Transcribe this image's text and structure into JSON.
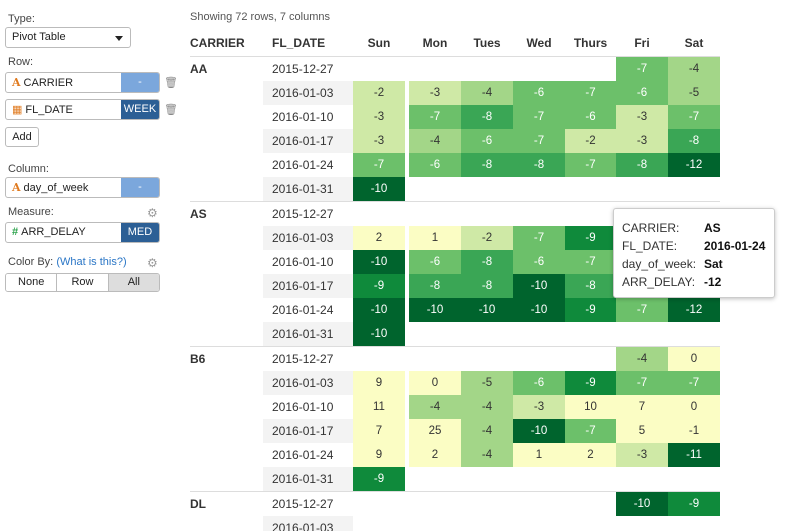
{
  "sidebar": {
    "type_label": "Type:",
    "type_value": "Pivot Table",
    "row_label": "Row:",
    "row_fields": [
      {
        "icon": "text-type-icon",
        "glyph": "A",
        "name": "CARRIER",
        "button": "-"
      },
      {
        "icon": "calendar-icon",
        "glyph": "▦",
        "name": "FL_DATE",
        "button": "WEEK"
      }
    ],
    "add_label": "Add",
    "column_label": "Column:",
    "column_field": {
      "icon": "text-type-icon",
      "glyph": "A",
      "name": "day_of_week",
      "button": "-"
    },
    "measure_label": "Measure:",
    "measure_field": {
      "icon": "number-type-icon",
      "glyph": "#",
      "name": "ARR_DELAY",
      "button": "MED"
    },
    "colorby_label": "Color By:",
    "colorby_link": "(What is this?)",
    "colorby_options": [
      "None",
      "Row",
      "All"
    ],
    "colorby_selected": "All"
  },
  "status": "Showing 72 rows, 7 columns",
  "table": {
    "headers": [
      "CARRIER",
      "FL_DATE",
      "Sun",
      "Mon",
      "Tues",
      "Wed",
      "Thurs",
      "Fri",
      "Sat"
    ],
    "groups": [
      {
        "carrier": "AA",
        "rows": [
          {
            "date": "2015-12-27",
            "values": [
              null,
              null,
              null,
              null,
              null,
              -7,
              -4
            ]
          },
          {
            "date": "2016-01-03",
            "values": [
              -2,
              -3,
              -4,
              -6,
              -7,
              -6,
              -5
            ]
          },
          {
            "date": "2016-01-10",
            "values": [
              -3,
              -7,
              -8,
              -7,
              -6,
              -3,
              -7
            ]
          },
          {
            "date": "2016-01-17",
            "values": [
              -3,
              -4,
              -6,
              -7,
              -2,
              -3,
              -8
            ]
          },
          {
            "date": "2016-01-24",
            "values": [
              -7,
              -6,
              -8,
              -8,
              -7,
              -8,
              -12
            ]
          },
          {
            "date": "2016-01-31",
            "values": [
              -10,
              null,
              null,
              null,
              null,
              null,
              null
            ]
          }
        ]
      },
      {
        "carrier": "AS",
        "rows": [
          {
            "date": "2015-12-27",
            "values": [
              null,
              null,
              null,
              null,
              null,
              null,
              null
            ]
          },
          {
            "date": "2016-01-03",
            "values": [
              2,
              1,
              -2,
              -7,
              -9,
              null,
              null
            ]
          },
          {
            "date": "2016-01-10",
            "values": [
              -10,
              -6,
              -8,
              -6,
              -7,
              null,
              null
            ]
          },
          {
            "date": "2016-01-17",
            "values": [
              -9,
              -8,
              -8,
              -10,
              -8,
              null,
              null
            ]
          },
          {
            "date": "2016-01-24",
            "values": [
              -10,
              -10,
              -10,
              -10,
              -9,
              -7,
              -12
            ]
          },
          {
            "date": "2016-01-31",
            "values": [
              -10,
              null,
              null,
              null,
              null,
              null,
              null
            ]
          }
        ]
      },
      {
        "carrier": "B6",
        "rows": [
          {
            "date": "2015-12-27",
            "values": [
              null,
              null,
              null,
              null,
              null,
              -4,
              0
            ]
          },
          {
            "date": "2016-01-03",
            "values": [
              9,
              0,
              -5,
              -6,
              -9,
              -7,
              -7
            ]
          },
          {
            "date": "2016-01-10",
            "values": [
              11,
              -4,
              -4,
              -3,
              10,
              7,
              0
            ]
          },
          {
            "date": "2016-01-17",
            "values": [
              7,
              25,
              -4,
              -10,
              -7,
              5,
              -1
            ]
          },
          {
            "date": "2016-01-24",
            "values": [
              9,
              2,
              -4,
              1,
              2,
              -3,
              -11
            ]
          },
          {
            "date": "2016-01-31",
            "values": [
              -9,
              null,
              null,
              null,
              null,
              null,
              null
            ]
          }
        ]
      },
      {
        "carrier": "DL",
        "rows": [
          {
            "date": "2015-12-27",
            "values": [
              null,
              null,
              null,
              null,
              null,
              -10,
              -9
            ]
          },
          {
            "date": "2016-01-03",
            "values": [
              null,
              null,
              null,
              null,
              null,
              null,
              null
            ]
          }
        ]
      }
    ]
  },
  "tooltip": {
    "rows": [
      {
        "key": "CARRIER:",
        "value": "AS"
      },
      {
        "key": "FL_DATE:",
        "value": "2016-01-24"
      },
      {
        "key": "day_of_week:",
        "value": "Sat"
      },
      {
        "key": "ARR_DELAY:",
        "value": "-12"
      }
    ]
  },
  "colors": {
    "scale": [
      "#00642d",
      "#0f8a3b",
      "#3aa655",
      "#6cc06a",
      "#a3d688",
      "#cfe9a6",
      "#fbfdc4"
    ],
    "accent_button": "#7ba7dc",
    "accent_button_dark": "#2c5f95",
    "link": "#2a76c6"
  }
}
